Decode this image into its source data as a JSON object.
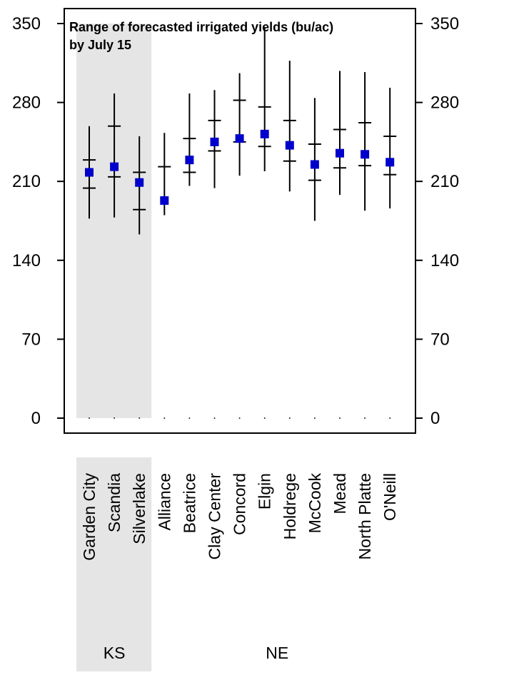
{
  "chart_data": {
    "type": "scatter",
    "title_lines": [
      "Range of forecasted irrigated yields (bu/ac)",
      "by July 15"
    ],
    "xlabel": "",
    "ylabel": "",
    "ylim": [
      0,
      350
    ],
    "yticks": [
      0,
      70,
      140,
      210,
      280,
      350
    ],
    "grid": false,
    "categories": [
      "Garden City",
      "Scandia",
      "Silverlake",
      "Alliance",
      "Beatrice",
      "Clay Center",
      "Concord",
      "Elgin",
      "Holdrege",
      "McCook",
      "Mead",
      "North Platte",
      "O'Neill"
    ],
    "median": [
      218,
      223,
      209,
      193,
      229,
      245,
      248,
      252,
      242,
      225,
      235,
      234,
      227
    ],
    "min": [
      177,
      178,
      163,
      180,
      206,
      204,
      215,
      219,
      201,
      175,
      198,
      184,
      186
    ],
    "max": [
      259,
      288,
      250,
      253,
      288,
      291,
      306,
      346,
      317,
      284,
      308,
      307,
      293
    ],
    "q_low": [
      204,
      214,
      185,
      0,
      218,
      237,
      245,
      241,
      228,
      211,
      222,
      224,
      216
    ],
    "q_high": [
      229,
      259,
      218,
      223,
      248,
      264,
      282,
      276,
      264,
      243,
      256,
      262,
      250
    ],
    "groups": [
      {
        "label": "KS",
        "start": 0,
        "end": 2,
        "shaded": true
      },
      {
        "label": "NE",
        "start": 3,
        "end": 12,
        "shaded": false
      }
    ],
    "colors": {
      "point": "#0000cc",
      "line": "#000000",
      "shade": "#e5e5e5"
    }
  }
}
